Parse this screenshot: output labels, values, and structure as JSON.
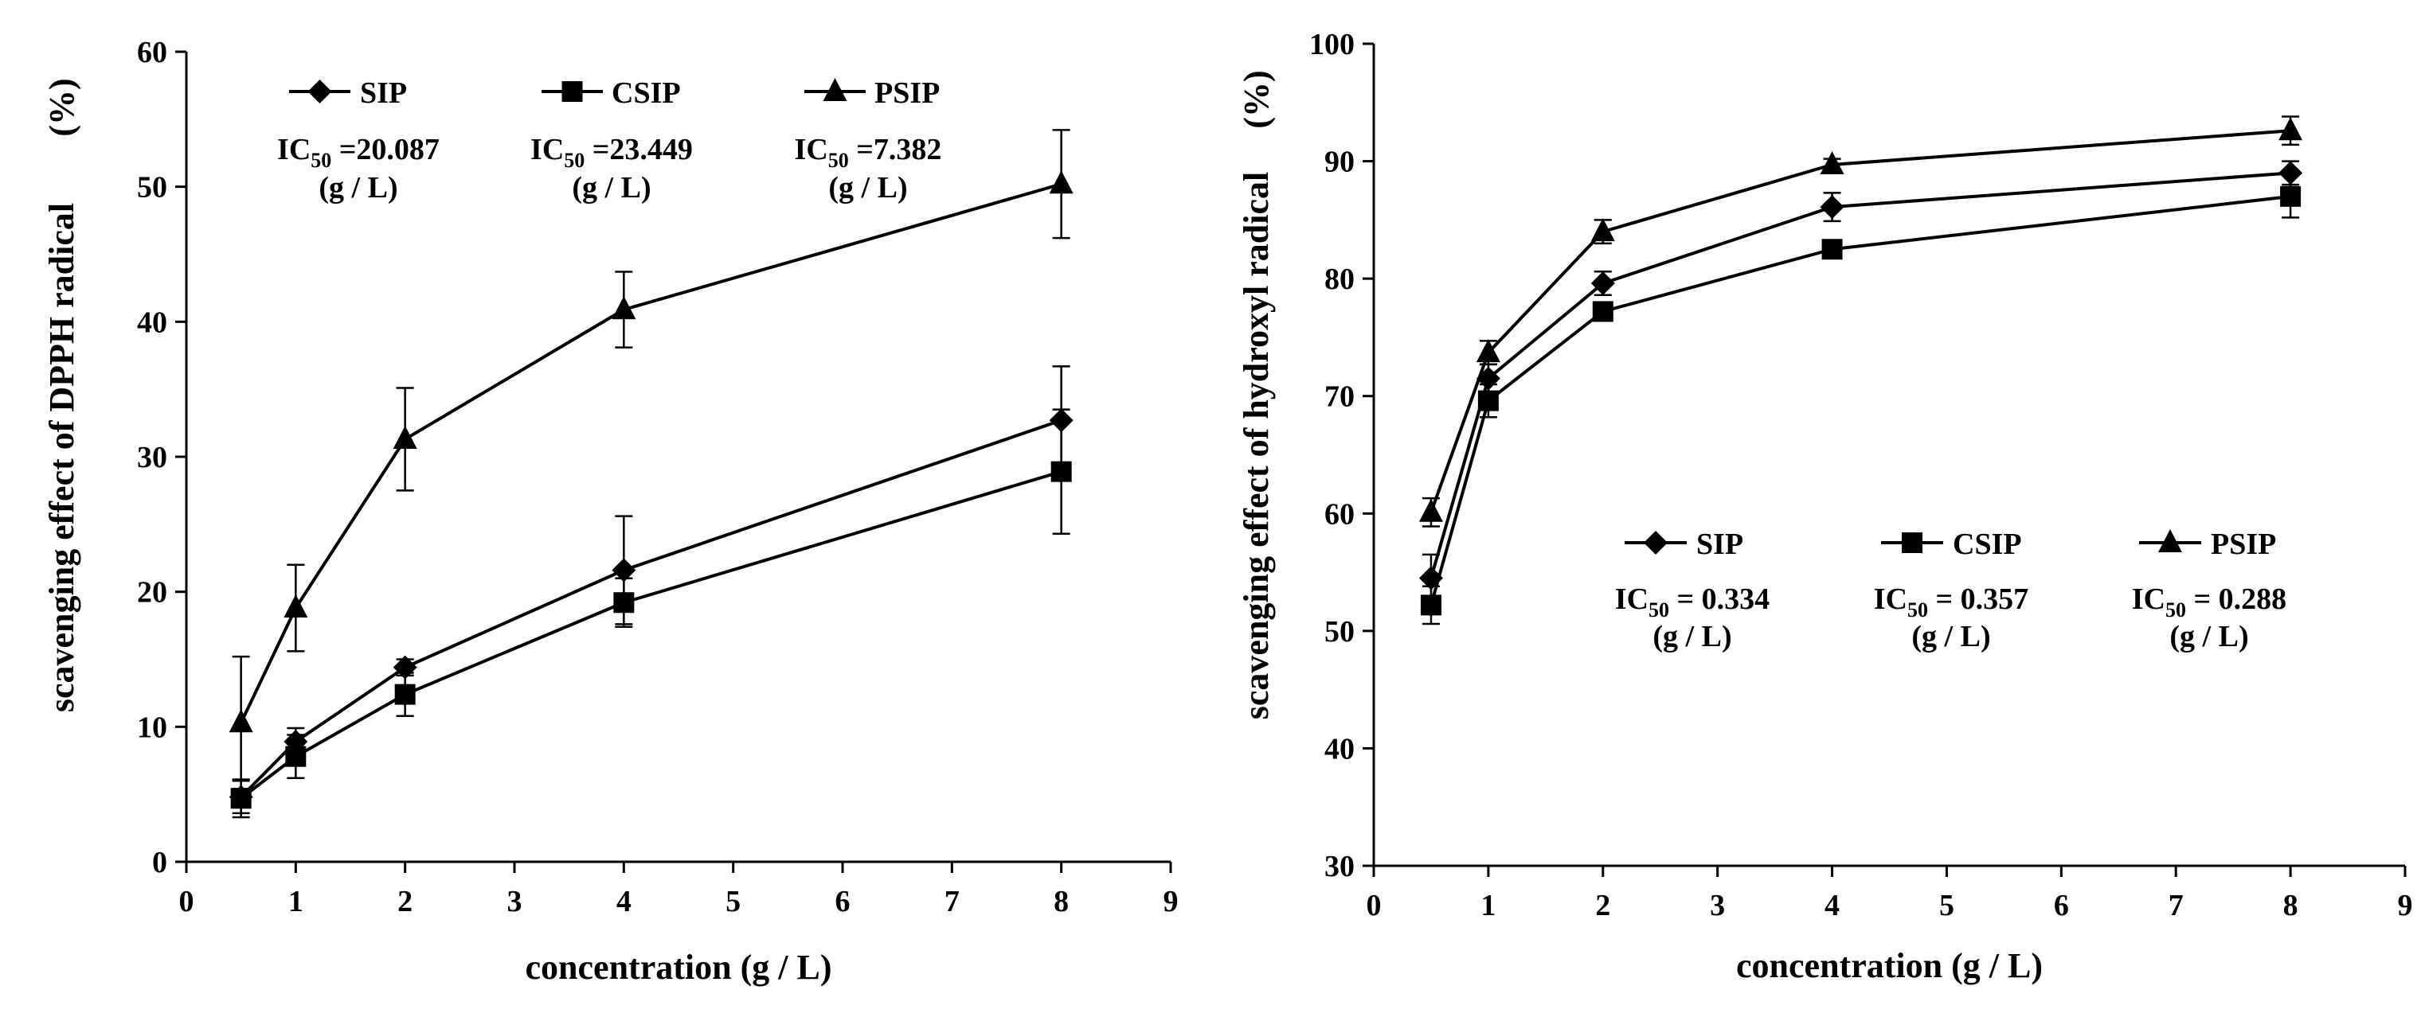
{
  "chart_data": [
    {
      "type": "line",
      "panel": "left",
      "title": "",
      "xlabel": "concentration (g / L)",
      "ylabel": "scavenging effect of DPPH radical",
      "ylabel_unit": "(%)",
      "xlim": [
        0,
        9
      ],
      "ylim": [
        0,
        60
      ],
      "xticks": [
        0,
        1,
        2,
        3,
        4,
        5,
        6,
        7,
        8,
        9
      ],
      "yticks": [
        0,
        10,
        20,
        30,
        40,
        50,
        60
      ],
      "grid": false,
      "legend_position": "top",
      "x": [
        0.5,
        1,
        2,
        4,
        8
      ],
      "series": [
        {
          "name": "SIP",
          "marker": "diamond",
          "values": [
            4.8,
            8.9,
            14.4,
            21.6,
            32.7
          ],
          "errors": [
            1.2,
            1.0,
            0.6,
            4.0,
            4.0
          ],
          "ic50_prefix": "IC",
          "ic50_sub": "50",
          "ic50_value": "=20.087",
          "ic50_unit": "(g / L)"
        },
        {
          "name": "CSIP",
          "marker": "square",
          "values": [
            4.7,
            7.8,
            12.4,
            19.2,
            28.9
          ],
          "errors": [
            1.4,
            1.6,
            1.6,
            1.8,
            4.6
          ],
          "ic50_prefix": "IC",
          "ic50_sub": "50",
          "ic50_value": "=23.449",
          "ic50_unit": "(g / L)"
        },
        {
          "name": "PSIP",
          "marker": "triangle",
          "values": [
            10.3,
            18.8,
            31.3,
            40.9,
            50.2
          ],
          "errors": [
            4.9,
            3.2,
            3.8,
            2.8,
            4.0
          ],
          "ic50_prefix": "IC",
          "ic50_sub": "50",
          "ic50_value": "=7.382",
          "ic50_unit": "(g / L)"
        }
      ]
    },
    {
      "type": "line",
      "panel": "right",
      "title": "",
      "xlabel": "concentration (g / L)",
      "ylabel": "scavenging effect of hydroxyl radical",
      "ylabel_unit": "(%)",
      "xlim": [
        0,
        9
      ],
      "ylim": [
        30,
        100
      ],
      "xticks": [
        0,
        1,
        2,
        3,
        4,
        5,
        6,
        7,
        8,
        9
      ],
      "yticks": [
        30,
        40,
        50,
        60,
        70,
        80,
        90,
        100
      ],
      "grid": false,
      "legend_position": "center-right",
      "x": [
        0.5,
        1,
        2,
        4,
        8
      ],
      "series": [
        {
          "name": "SIP",
          "marker": "diamond",
          "values": [
            54.5,
            71.5,
            79.6,
            86.1,
            89.0
          ],
          "errors": [
            2.0,
            1.2,
            1.0,
            1.2,
            1.0
          ],
          "ic50_prefix": "IC",
          "ic50_sub": "50",
          "ic50_value": "= 0.334",
          "ic50_unit": "(g / L)"
        },
        {
          "name": "CSIP",
          "marker": "square",
          "values": [
            52.2,
            69.6,
            77.2,
            82.5,
            87.0
          ],
          "errors": [
            1.6,
            1.4,
            0.6,
            0.5,
            1.8
          ],
          "ic50_prefix": "IC",
          "ic50_sub": "50",
          "ic50_value": "= 0.357",
          "ic50_unit": "(g / L)"
        },
        {
          "name": "PSIP",
          "marker": "triangle",
          "values": [
            60.1,
            73.7,
            84.0,
            89.7,
            92.6
          ],
          "errors": [
            1.2,
            1.0,
            1.0,
            0.5,
            1.2
          ],
          "ic50_prefix": "IC",
          "ic50_sub": "50",
          "ic50_value": "= 0.288",
          "ic50_unit": "(g / L)"
        }
      ]
    }
  ]
}
